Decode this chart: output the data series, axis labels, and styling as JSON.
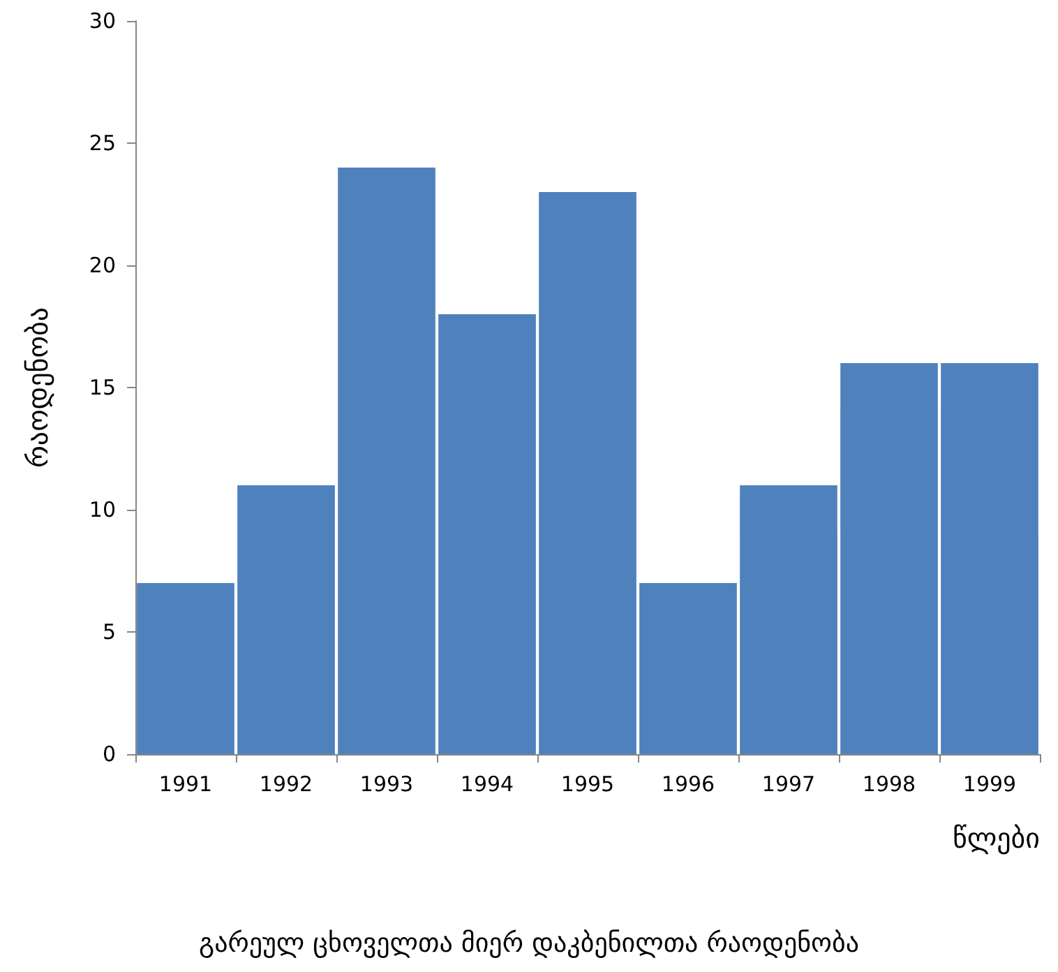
{
  "chart_data": {
    "type": "bar",
    "title": "გარეულ ცხოველთა მიერ დაკბენილთა რაოდენობა",
    "xlabel": "წლები",
    "ylabel": "რაოდენობა",
    "categories": [
      "1991",
      "1992",
      "1993",
      "1994",
      "1995",
      "1996",
      "1997",
      "1998",
      "1999"
    ],
    "values": [
      7,
      11,
      24,
      18,
      23,
      7,
      11,
      16,
      16
    ],
    "color": "#4f81bd",
    "ylim": [
      0,
      30
    ],
    "yticks": [
      0,
      5,
      10,
      15,
      20,
      25,
      30
    ]
  }
}
